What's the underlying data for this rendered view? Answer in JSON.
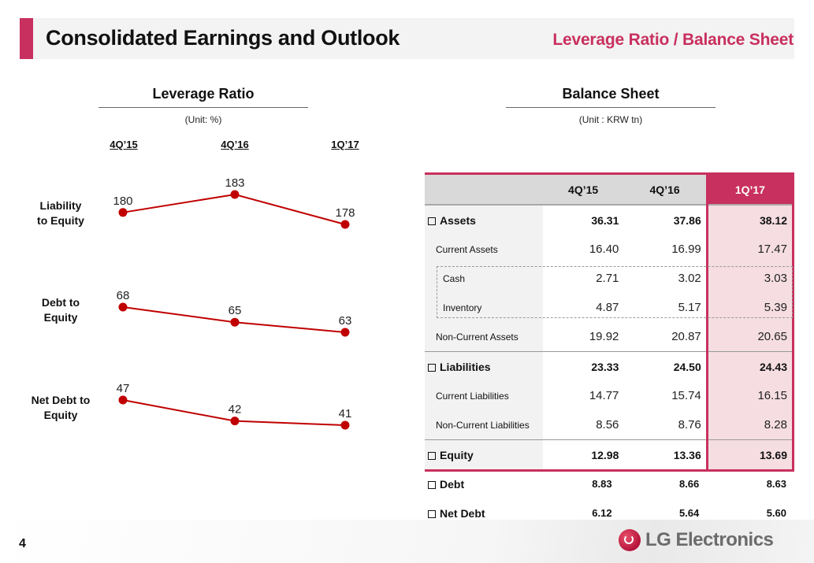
{
  "header": {
    "title": "Consolidated Earnings and Outlook",
    "subtitle": "Leverage Ratio / Balance Sheet",
    "accent_color": "#c8305f"
  },
  "leverage": {
    "title": "Leverage Ratio",
    "unit": "(Unit: %)"
  },
  "balance": {
    "title": "Balance Sheet",
    "unit": "(Unit : KRW tn)",
    "columns": [
      "",
      "4Q’15",
      "4Q’16",
      "1Q’17"
    ],
    "rows": [
      {
        "label": "Assets",
        "values": [
          "36.31",
          "37.86",
          "38.12"
        ]
      },
      {
        "label": "Current Assets",
        "values": [
          "16.40",
          "16.99",
          "17.47"
        ]
      },
      {
        "label": "Cash",
        "values": [
          "2.71",
          "3.02",
          "3.03"
        ]
      },
      {
        "label": "Inventory",
        "values": [
          "4.87",
          "5.17",
          "5.39"
        ]
      },
      {
        "label": "Non-Current Assets",
        "values": [
          "19.92",
          "20.87",
          "20.65"
        ]
      },
      {
        "label": "Liabilities",
        "values": [
          "23.33",
          "24.50",
          "24.43"
        ]
      },
      {
        "label": "Current Liabilities",
        "values": [
          "14.77",
          "15.74",
          "16.15"
        ]
      },
      {
        "label": "Non-Current Liabilities",
        "values": [
          "8.56",
          "8.76",
          "8.28"
        ]
      },
      {
        "label": "Equity",
        "values": [
          "12.98",
          "13.36",
          "13.69"
        ]
      }
    ],
    "extra_rows": [
      {
        "label": "Debt",
        "values": [
          "8.83",
          "8.66",
          "8.63"
        ]
      },
      {
        "label": "Net Debt",
        "values": [
          "6.12",
          "5.64",
          "5.60"
        ]
      }
    ],
    "highlight_color": "#f5dde2"
  },
  "footer": {
    "page_number": "4",
    "logo_text": "LG Electronics"
  },
  "chart_data": {
    "type": "line",
    "title": "Leverage Ratio",
    "unit": "%",
    "categories": [
      "4Q’15",
      "4Q’16",
      "1Q’17"
    ],
    "series": [
      {
        "name": "Liability to Equity",
        "label_lines": [
          "Liability",
          "to Equity"
        ],
        "values": [
          180,
          183,
          178
        ]
      },
      {
        "name": "Debt to Equity",
        "label_lines": [
          "Debt to",
          "Equity"
        ],
        "values": [
          68,
          65,
          63
        ]
      },
      {
        "name": "Net Debt to Equity",
        "label_lines": [
          "Net Debt to",
          "Equity"
        ],
        "values": [
          47,
          42,
          41
        ]
      }
    ],
    "line_color": "#c00000",
    "grid": false,
    "legend": "none"
  }
}
